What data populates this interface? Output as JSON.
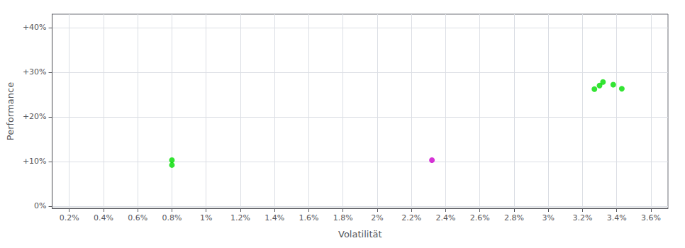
{
  "chart_data": {
    "type": "scatter",
    "xlabel": "Volatilität",
    "ylabel": "Performance",
    "xlim": [
      0.001,
      0.037
    ],
    "ylim": [
      -0.005,
      0.43
    ],
    "xticks": [
      {
        "value": 0.002,
        "label": "0.2%"
      },
      {
        "value": 0.004,
        "label": "0.4%"
      },
      {
        "value": 0.006,
        "label": "0.6%"
      },
      {
        "value": 0.008,
        "label": "0.8%"
      },
      {
        "value": 0.01,
        "label": "1%"
      },
      {
        "value": 0.012,
        "label": "1.2%"
      },
      {
        "value": 0.014,
        "label": "1.4%"
      },
      {
        "value": 0.016,
        "label": "1.6%"
      },
      {
        "value": 0.018,
        "label": "1.8%"
      },
      {
        "value": 0.02,
        "label": "2%"
      },
      {
        "value": 0.022,
        "label": "2.2%"
      },
      {
        "value": 0.024,
        "label": "2.4%"
      },
      {
        "value": 0.026,
        "label": "2.6%"
      },
      {
        "value": 0.028,
        "label": "2.8%"
      },
      {
        "value": 0.03,
        "label": "3%"
      },
      {
        "value": 0.032,
        "label": "3.2%"
      },
      {
        "value": 0.034,
        "label": "3.4%"
      },
      {
        "value": 0.036,
        "label": "3.6%"
      }
    ],
    "yticks": [
      {
        "value": 0.0,
        "label": "0%"
      },
      {
        "value": 0.1,
        "label": "+10%"
      },
      {
        "value": 0.2,
        "label": "+20%"
      },
      {
        "value": 0.3,
        "label": "+30%"
      },
      {
        "value": 0.4,
        "label": "+40%"
      }
    ],
    "grid": true,
    "series": [
      {
        "color": "#00dd00",
        "x": [
          0.008,
          0.008,
          0.0327,
          0.033,
          0.0332,
          0.0338,
          0.0343
        ],
        "values": [
          0.103,
          0.092,
          0.262,
          0.27,
          0.278,
          0.272,
          0.263
        ]
      },
      {
        "color": "#cc00cc",
        "x": [
          0.0232
        ],
        "values": [
          0.103
        ]
      }
    ]
  }
}
